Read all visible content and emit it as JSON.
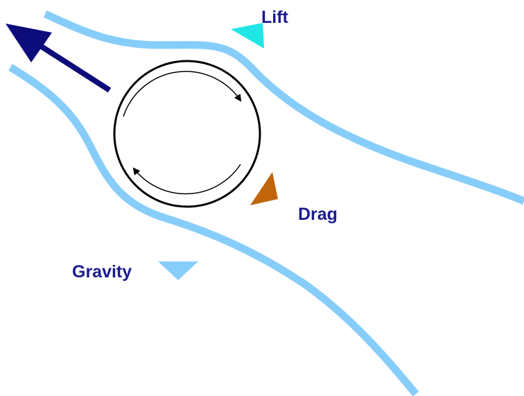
{
  "labels": {
    "lift": "Lift",
    "drag": "Drag",
    "gravity": "Gravity"
  }
}
